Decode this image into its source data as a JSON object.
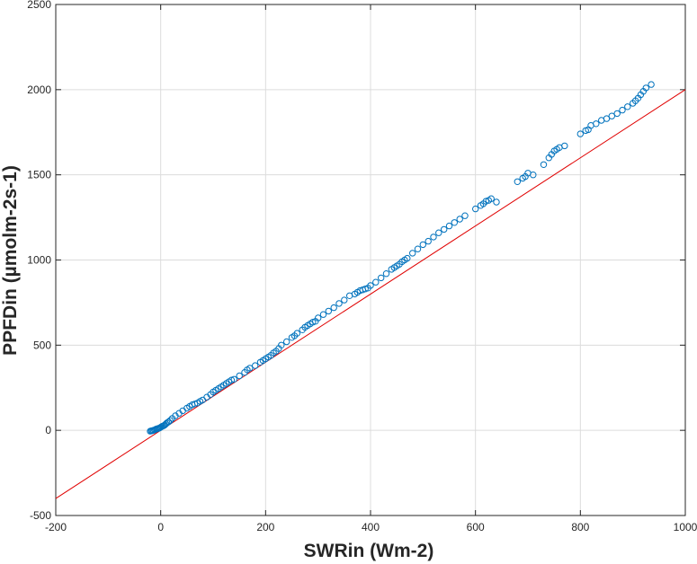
{
  "chart_data": {
    "type": "scatter",
    "xlabel": "SWRin (Wm-2)",
    "ylabel": "PPFDin (µmolm-2s-1)",
    "xlim": [
      -200,
      1000
    ],
    "ylim": [
      -500,
      2500
    ],
    "xticks": [
      -200,
      0,
      200,
      400,
      600,
      800,
      1000
    ],
    "yticks": [
      -500,
      0,
      500,
      1000,
      1500,
      2000,
      2500
    ],
    "grid": true,
    "colors": {
      "points": "#0072bd",
      "line": "#e00000",
      "grid": "#dcdcdc",
      "axis": "#262626"
    },
    "series": [
      {
        "type": "scatter",
        "x": [
          -20,
          -18,
          -16,
          -14,
          -12,
          -10,
          -8,
          -6,
          -4,
          -2,
          0,
          2,
          4,
          6,
          8,
          10,
          12,
          15,
          18,
          22,
          28,
          35,
          42,
          50,
          55,
          60,
          65,
          70,
          75,
          80,
          88,
          95,
          100,
          105,
          110,
          115,
          120,
          125,
          130,
          135,
          140,
          150,
          160,
          165,
          170,
          180,
          190,
          195,
          200,
          205,
          210,
          215,
          220,
          225,
          230,
          240,
          250,
          255,
          260,
          270,
          275,
          280,
          285,
          290,
          295,
          300,
          310,
          320,
          330,
          340,
          350,
          360,
          370,
          375,
          380,
          385,
          390,
          395,
          400,
          410,
          420,
          430,
          440,
          445,
          450,
          455,
          460,
          465,
          470,
          480,
          490,
          500,
          510,
          520,
          530,
          540,
          550,
          560,
          570,
          580,
          600,
          610,
          615,
          620,
          625,
          630,
          640,
          680,
          690,
          695,
          700,
          710,
          730,
          740,
          745,
          750,
          755,
          760,
          770,
          800,
          810,
          815,
          820,
          830,
          840,
          850,
          860,
          870,
          880,
          890,
          900,
          905,
          910,
          915,
          920,
          925,
          935
        ],
        "y": [
          -5,
          -3,
          -2,
          0,
          2,
          5,
          8,
          10,
          12,
          14,
          18,
          22,
          25,
          28,
          32,
          38,
          44,
          50,
          58,
          70,
          85,
          100,
          115,
          130,
          140,
          150,
          155,
          160,
          170,
          178,
          195,
          210,
          225,
          235,
          245,
          255,
          265,
          275,
          285,
          295,
          300,
          320,
          340,
          355,
          365,
          380,
          400,
          410,
          420,
          430,
          440,
          455,
          465,
          480,
          500,
          520,
          545,
          555,
          570,
          590,
          605,
          615,
          625,
          635,
          640,
          660,
          680,
          700,
          720,
          745,
          765,
          790,
          800,
          810,
          820,
          825,
          830,
          835,
          850,
          870,
          895,
          920,
          945,
          955,
          965,
          975,
          990,
          1000,
          1010,
          1040,
          1065,
          1090,
          1110,
          1135,
          1160,
          1180,
          1200,
          1220,
          1240,
          1260,
          1300,
          1320,
          1330,
          1345,
          1350,
          1360,
          1340,
          1460,
          1480,
          1490,
          1510,
          1500,
          1560,
          1600,
          1620,
          1640,
          1650,
          1660,
          1670,
          1740,
          1760,
          1765,
          1790,
          1800,
          1820,
          1830,
          1845,
          1860,
          1880,
          1900,
          1920,
          1935,
          1950,
          1970,
          1990,
          2010,
          2030
        ]
      },
      {
        "type": "line",
        "x": [
          -200,
          1000
        ],
        "y": [
          -400,
          2000
        ]
      }
    ]
  }
}
